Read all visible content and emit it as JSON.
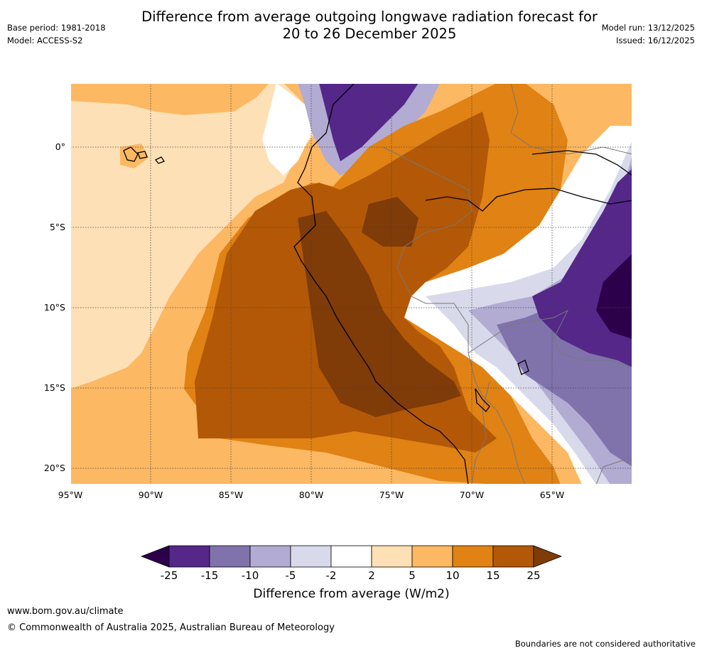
{
  "title_line1": "Difference from average outgoing longwave radiation forecast for",
  "title_line2": "20 to 26 December 2025",
  "base_period": "Base period: 1981-2018",
  "model": "Model: ACCESS-S2",
  "model_run": "Model run: 13/12/2025",
  "issued": "Issued: 16/12/2025",
  "lat_labels": [
    "0°",
    "5°S",
    "10°S",
    "15°S",
    "20°S"
  ],
  "lon_labels": [
    "95°W",
    "90°W",
    "85°W",
    "80°W",
    "75°W",
    "70°W",
    "65°W"
  ],
  "colorbar": {
    "ticks": [
      "-25",
      "-15",
      "-10",
      "-5",
      "-2",
      "2",
      "5",
      "10",
      "15",
      "25"
    ],
    "colors": [
      "#2d004b",
      "#542788",
      "#8073ac",
      "#b2abd2",
      "#d8daeb",
      "#ffffff",
      "#fee0b6",
      "#fdb863",
      "#e08214",
      "#b35806",
      "#7f3b08"
    ],
    "label": "Difference from average (W/m2)"
  },
  "url": "www.bom.gov.au/climate",
  "copyright": "© Commonwealth of Australia 2025, Australian Bureau of Meteorology",
  "disclaimer": "Boundaries are not considered authoritative"
}
